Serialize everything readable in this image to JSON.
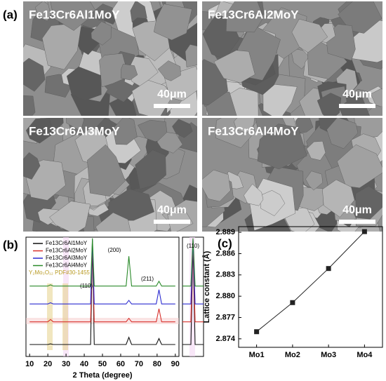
{
  "figure": {
    "panel_labels": [
      "(a)",
      "(b)",
      "(c)"
    ],
    "micrographs": [
      {
        "label": "Fe13Cr6Al1MoY",
        "scale": "40μm"
      },
      {
        "label": "Fe13Cr6Al2MoY",
        "scale": "40μm"
      },
      {
        "label": "Fe13Cr6Al3MoY",
        "scale": "40μm"
      },
      {
        "label": "Fe13Cr6Al4MoY",
        "scale": "40μm"
      }
    ]
  },
  "chart_data": [
    {
      "type": "line",
      "xlabel": "2 Theta (degree)",
      "x": [
        10,
        20,
        21.5,
        23,
        30,
        43.5,
        44.5,
        45.5,
        63,
        64.5,
        66,
        79.5,
        81,
        82.5,
        90
      ],
      "xlim": [
        8,
        92
      ],
      "xticks": [
        10,
        20,
        30,
        40,
        50,
        60,
        70,
        80,
        90
      ],
      "ylim": [
        0,
        100
      ],
      "annotations": [
        "(110)",
        "(200)",
        "(211)",
        "Y₂Mo₃O₁₂ PDF#30-1455"
      ],
      "series": [
        {
          "name": "Fe13Cr6Al1MoY",
          "color": "#111111",
          "values": [
            10,
            10,
            10.5,
            10,
            10,
            10,
            95,
            10,
            10,
            16,
            10,
            10,
            15,
            10,
            10
          ]
        },
        {
          "name": "Fe13Cr6Al2MoY",
          "color": "#d8302c",
          "values": [
            29,
            29,
            31,
            29,
            29,
            29,
            97,
            29,
            29,
            32,
            29,
            29,
            40,
            29,
            29
          ]
        },
        {
          "name": "Fe13Cr6Al3MoY",
          "color": "#2b2bd0",
          "values": [
            44,
            44,
            45,
            44,
            44,
            44,
            98,
            44,
            44,
            47,
            44,
            44,
            56,
            44,
            44
          ]
        },
        {
          "name": "Fe13Cr6Al4MoY",
          "color": "#2a8a2a",
          "values": [
            59,
            59,
            60,
            59,
            59,
            59,
            99,
            59,
            59,
            84,
            59,
            59,
            63,
            59,
            59
          ]
        }
      ]
    },
    {
      "type": "line",
      "x": [
        43.5,
        44.3,
        44.5,
        44.7,
        45.5
      ],
      "xlim": [
        43.5,
        45.5
      ],
      "ylim": [
        0,
        100
      ],
      "annotations": [
        "(110)"
      ],
      "series": [
        {
          "color": "#111111",
          "values": [
            10,
            10,
            95,
            10,
            10
          ]
        },
        {
          "color": "#d8302c",
          "values": [
            29,
            29,
            97,
            29,
            29
          ]
        },
        {
          "color": "#2b2bd0",
          "values": [
            44,
            44,
            98,
            44,
            44
          ]
        },
        {
          "color": "#2a8a2a",
          "values": [
            59,
            59,
            99,
            59,
            59
          ]
        }
      ]
    },
    {
      "type": "line",
      "ylabel": "Lattice constant (Å)",
      "color": "#222222",
      "categories": [
        "Mo1",
        "Mo2",
        "Mo3",
        "Mo4"
      ],
      "values": [
        2.875,
        2.8791,
        2.8839,
        2.8891
      ],
      "ylim": [
        2.8728,
        2.8898
      ],
      "yticks": [
        2.874,
        2.877,
        {
          "value": 2.88,
          "label": "2.880"
        },
        2.883,
        2.886,
        2.889
      ]
    }
  ]
}
